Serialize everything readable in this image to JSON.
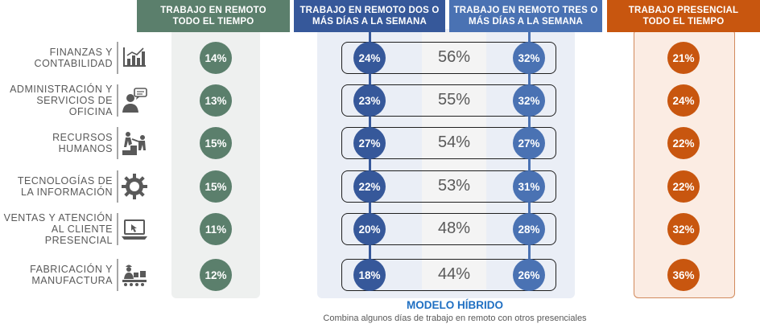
{
  "colors": {
    "green": "#5b7f6c",
    "blue": "#36589a",
    "light_blue": "#4a72b3",
    "orange": "#c8560f",
    "hybrid_title": "#1f6fc2"
  },
  "columns": {
    "remote_full": "TRABAJO EN REMOTO\nTODO EL TIEMPO",
    "remote_two": "TRABAJO EN REMOTO DOS O\nMÁS DÍAS A LA SEMANA",
    "remote_three": "TRABAJO EN REMOTO TRES O\nMÁS DÍAS A LA SEMANA",
    "onsite_full": "TRABAJO PRESENCIAL\nTODO EL TIEMPO"
  },
  "hybrid": {
    "title": "MODELO HÍBRIDO",
    "subtitle": "Combina algunos días de trabajo en remoto con otros presenciales"
  },
  "chart_data": {
    "type": "table",
    "value_unit": "%",
    "categories": [
      {
        "label": "FINANZAS Y\nCONTABILIDAD",
        "icon": "bar-chart-icon"
      },
      {
        "label": "ADMINISTRACIÓN Y\nSERVICIOS DE\nOFICINA",
        "icon": "person-speech-icon"
      },
      {
        "label": "RECURSOS\nHUMANOS",
        "icon": "people-steps-icon"
      },
      {
        "label": "TECNOLOGÍAS DE\nLA INFORMACIÓN",
        "icon": "gear-icon"
      },
      {
        "label": "VENTAS Y ATENCIÓN\nAL CLIENTE\nPRESENCIAL",
        "icon": "laptop-icon"
      },
      {
        "label": "FABRICACIÓN Y\nMANUFACTURA",
        "icon": "worker-conveyor-icon"
      }
    ],
    "series": [
      {
        "key": "remote_full",
        "values": [
          14,
          13,
          15,
          15,
          11,
          12
        ]
      },
      {
        "key": "remote_two",
        "values": [
          24,
          23,
          27,
          22,
          20,
          18
        ]
      },
      {
        "key": "hybrid",
        "values": [
          56,
          55,
          54,
          53,
          48,
          44
        ]
      },
      {
        "key": "remote_three",
        "values": [
          32,
          32,
          27,
          31,
          28,
          26
        ]
      },
      {
        "key": "onsite_full",
        "values": [
          21,
          24,
          22,
          22,
          32,
          36
        ]
      }
    ]
  }
}
